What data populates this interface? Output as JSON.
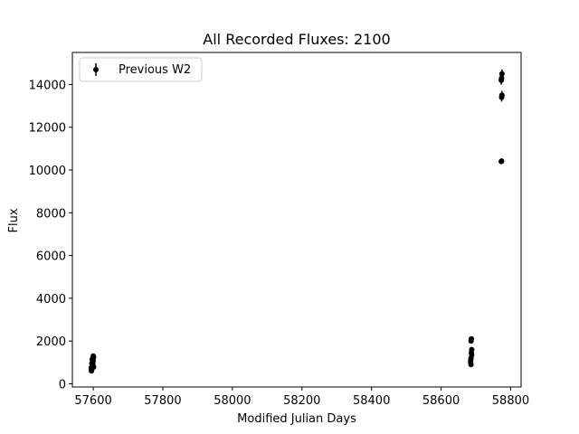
{
  "chart_data": {
    "type": "scatter",
    "title": "All Recorded Fluxes: 2100",
    "xlabel": "Modified Julian Days",
    "ylabel": "Flux",
    "xlim": [
      57540,
      58830
    ],
    "ylim": [
      -150,
      15500
    ],
    "xticks": [
      57600,
      57800,
      58000,
      58200,
      58400,
      58600,
      58800
    ],
    "yticks": [
      0,
      2000,
      4000,
      6000,
      8000,
      10000,
      12000,
      14000
    ],
    "grid": false,
    "legend": {
      "position": "top-left",
      "entries": [
        "Previous W2"
      ]
    },
    "series": [
      {
        "name": "Previous W2",
        "marker": "point-with-errorbar",
        "color": "#000000",
        "x": [
          57595,
          57596,
          57597,
          57598,
          57599,
          57600,
          57601,
          57594,
          57596,
          57598,
          57600,
          57597,
          57599,
          57595,
          57601,
          58685,
          58686,
          58687,
          58688,
          58686,
          58687,
          58685,
          58688,
          58686,
          58773,
          58774,
          58775,
          58773,
          58774,
          58775,
          58774
        ],
        "y": [
          600,
          700,
          820,
          900,
          1000,
          1100,
          1250,
          750,
          950,
          1050,
          1300,
          1150,
          880,
          650,
          780,
          1000,
          1200,
          1450,
          1600,
          2000,
          2100,
          1100,
          1350,
          900,
          10400,
          13400,
          13500,
          14200,
          14300,
          14500,
          10420
        ],
        "yerr": [
          60,
          60,
          60,
          60,
          60,
          60,
          60,
          60,
          60,
          60,
          60,
          60,
          60,
          60,
          60,
          80,
          80,
          80,
          80,
          80,
          80,
          80,
          80,
          80,
          120,
          200,
          200,
          200,
          200,
          200,
          120
        ]
      }
    ]
  }
}
